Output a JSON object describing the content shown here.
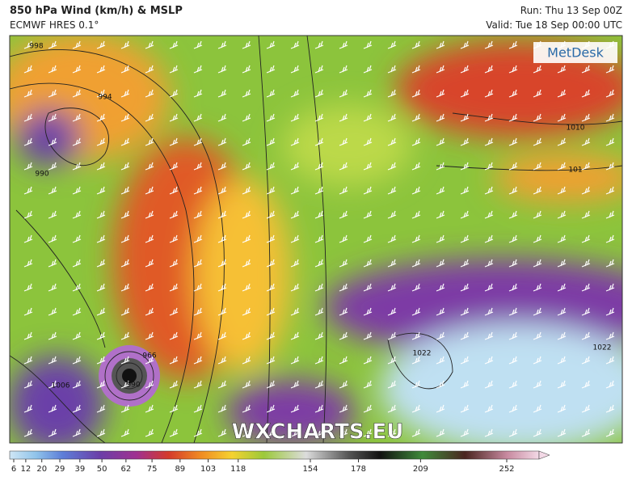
{
  "header": {
    "title": "850 hPa Wind (km/h) & MSLP",
    "model": "ECMWF HRES 0.1°",
    "run": "Run: Thu 13 Sep 00Z",
    "valid": "Valid: Tue 18 Sep 00:00 UTC"
  },
  "logo": "MetDesk",
  "watermark": "WXCHARTS.EU",
  "isobar_labels": [
    "998",
    "994",
    "990",
    "1006",
    "990",
    "966",
    "1010",
    "101",
    "1022",
    "1022"
  ],
  "colorbar": {
    "ticks": [
      6,
      12,
      20,
      29,
      39,
      50,
      62,
      75,
      89,
      103,
      118,
      154,
      178,
      209,
      252
    ]
  }
}
